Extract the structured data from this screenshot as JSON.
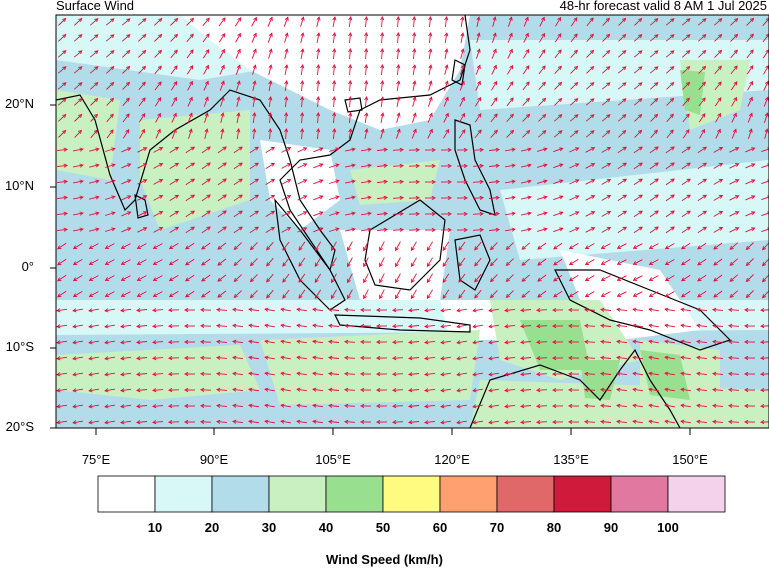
{
  "header": {
    "title": "Surface Wind",
    "valid": "48-hr forecast valid 8 AM 1 Jul 2025"
  },
  "map": {
    "lat_labels": [
      "20°N",
      "10°N",
      "0°",
      "10°S",
      "20°S"
    ],
    "lon_labels": [
      "75°E",
      "90°E",
      "105°E",
      "120°E",
      "135°E",
      "150°E"
    ],
    "vector_color": "#e0103a",
    "coast_color": "#000000"
  },
  "colorbar": {
    "title": "Wind Speed (km/h)",
    "tick_labels": [
      "10",
      "20",
      "30",
      "40",
      "50",
      "60",
      "70",
      "80",
      "90",
      "100"
    ],
    "colors": [
      "#ffffff",
      "#d8f7f7",
      "#b2dcea",
      "#c8f0c0",
      "#98e090",
      "#fffa80",
      "#ffa070",
      "#e06868",
      "#d01a3c",
      "#e078a0",
      "#f4d2ec"
    ]
  }
}
